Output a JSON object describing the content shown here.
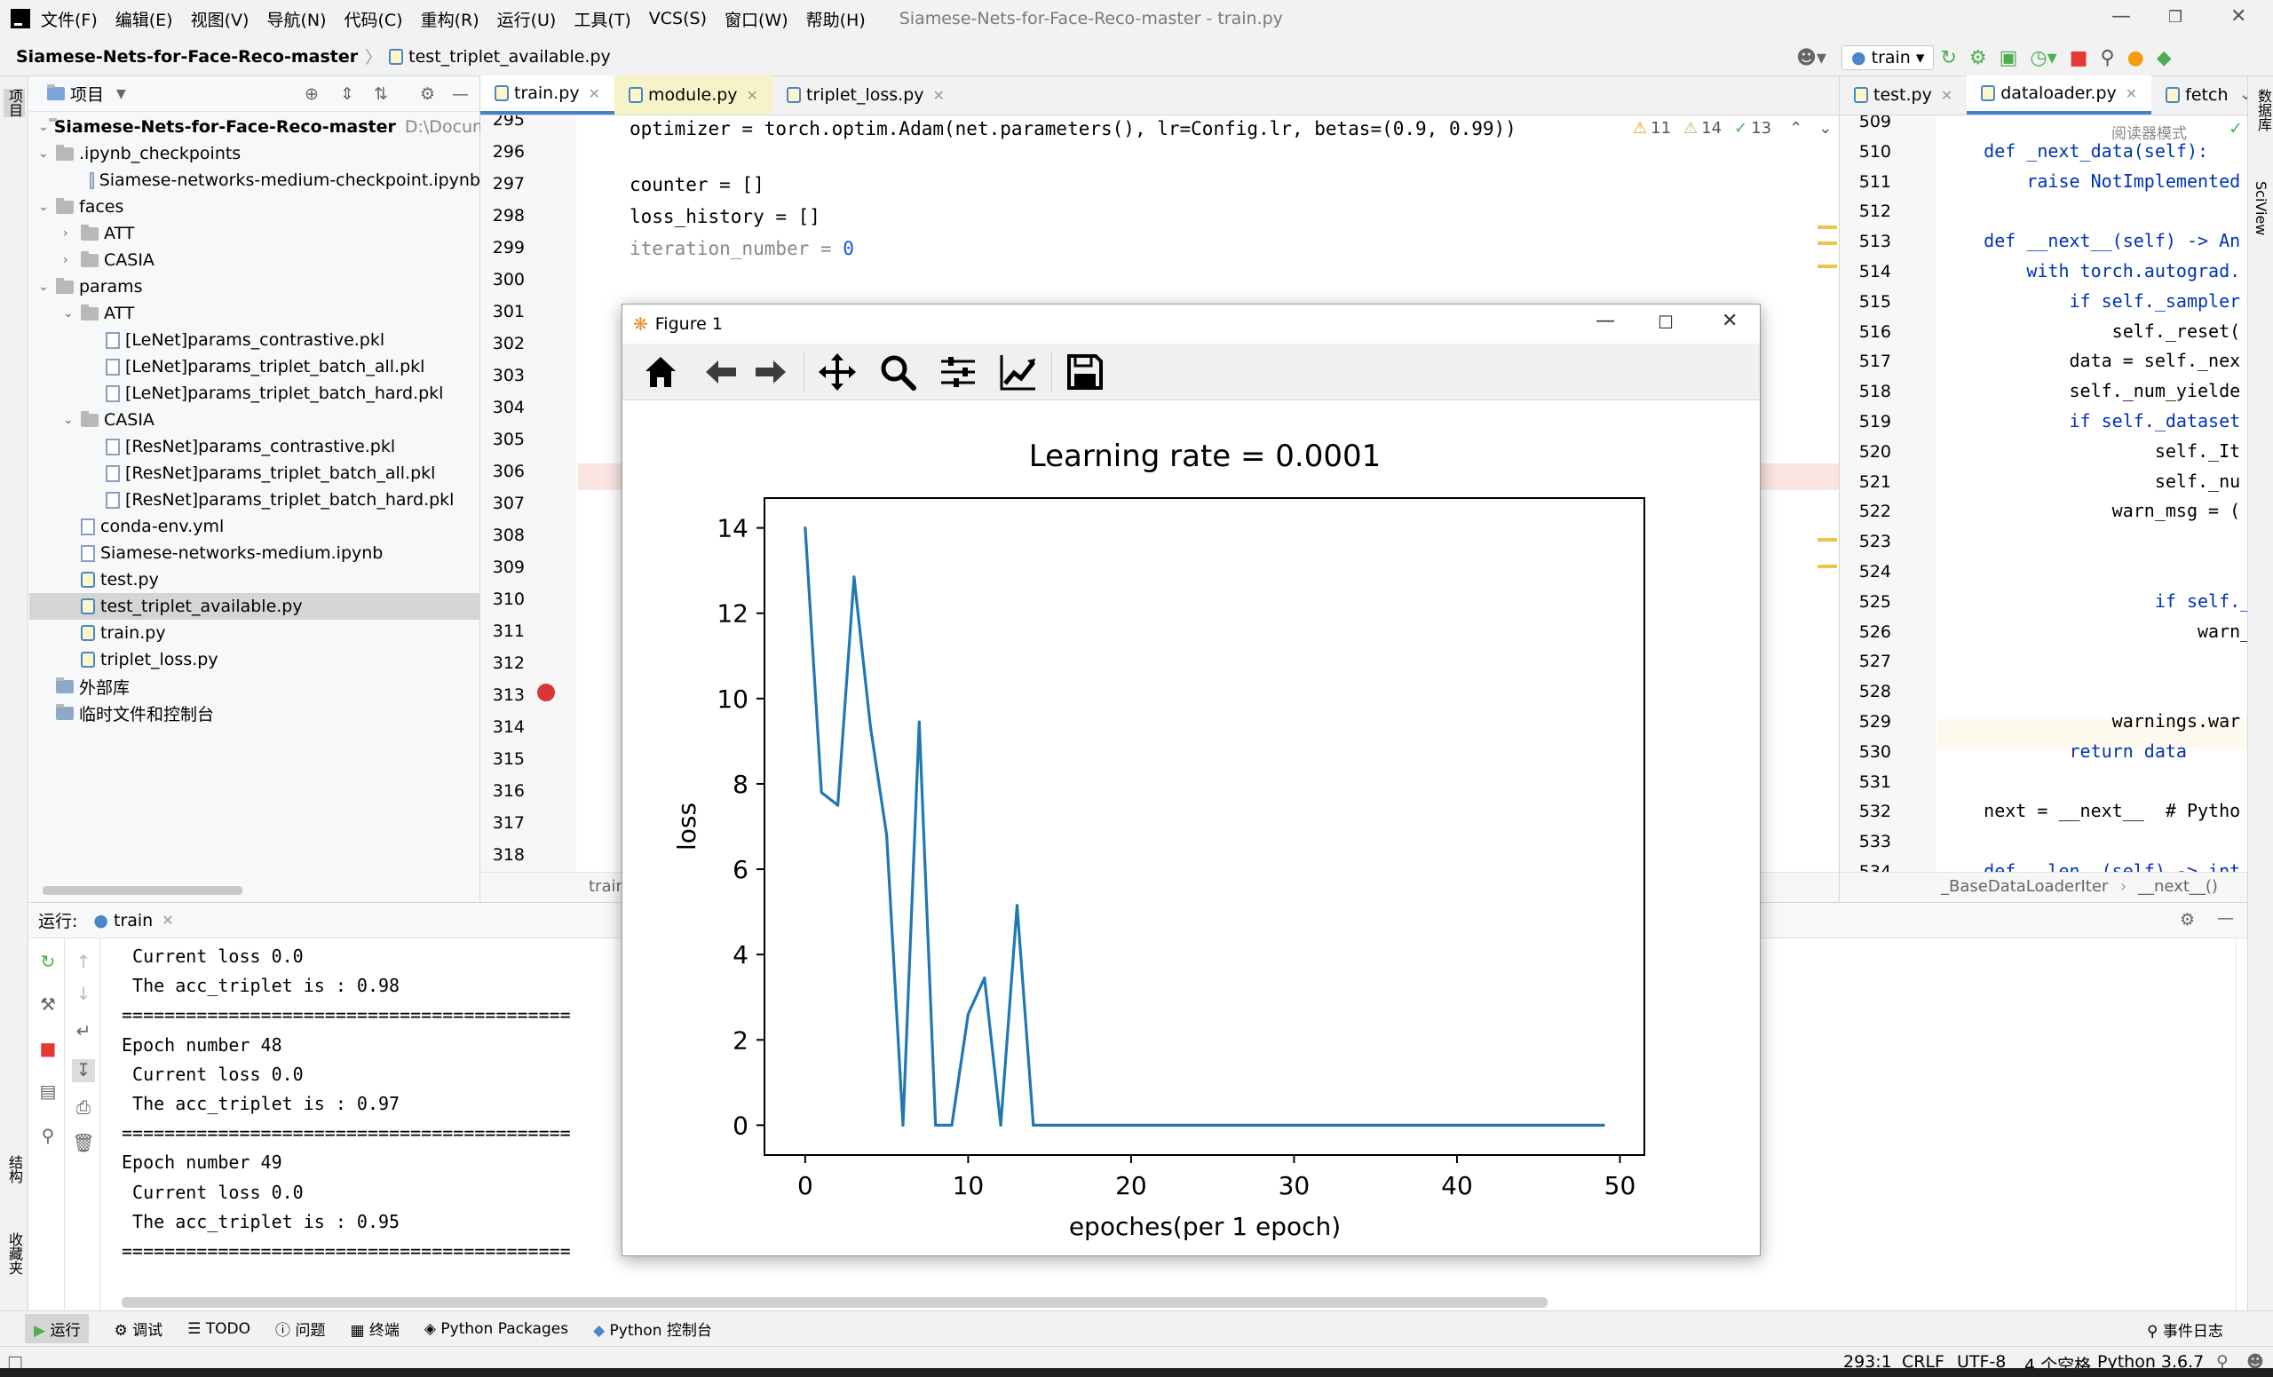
{
  "menubar": {
    "items": [
      "文件(F)",
      "编辑(E)",
      "视图(V)",
      "导航(N)",
      "代码(C)",
      "重构(R)",
      "运行(U)",
      "工具(T)",
      "VCS(S)",
      "窗口(W)",
      "帮助(H)"
    ],
    "window_title": "Siamese-Nets-for-Face-Reco-master - train.py"
  },
  "navbar": {
    "project": "Siamese-Nets-for-Face-Reco-master",
    "file": "test_triplet_available.py",
    "run_config": "train"
  },
  "project_panel": {
    "title": "项目",
    "rows": [
      {
        "label": "Siamese-Nets-for-Face-Reco-master",
        "suffix": "D:\\Documents\\[",
        "depth": 0,
        "kind": "root"
      },
      {
        "label": ".ipynb_checkpoints",
        "depth": 0,
        "kind": "folder",
        "open": true
      },
      {
        "label": "Siamese-networks-medium-checkpoint.ipynb",
        "depth": 2,
        "kind": "file"
      },
      {
        "label": "faces",
        "depth": 0,
        "kind": "folder",
        "open": true
      },
      {
        "label": "ATT",
        "depth": 1,
        "kind": "folder",
        "open": false
      },
      {
        "label": "CASIA",
        "depth": 1,
        "kind": "folder",
        "open": false
      },
      {
        "label": "params",
        "depth": 0,
        "kind": "folder",
        "open": true
      },
      {
        "label": "ATT",
        "depth": 1,
        "kind": "folder",
        "open": true
      },
      {
        "label": "[LeNet]params_contrastive.pkl",
        "depth": 2,
        "kind": "file"
      },
      {
        "label": "[LeNet]params_triplet_batch_all.pkl",
        "depth": 2,
        "kind": "file"
      },
      {
        "label": "[LeNet]params_triplet_batch_hard.pkl",
        "depth": 2,
        "kind": "file"
      },
      {
        "label": "CASIA",
        "depth": 1,
        "kind": "folder",
        "open": true
      },
      {
        "label": "[ResNet]params_contrastive.pkl",
        "depth": 2,
        "kind": "file"
      },
      {
        "label": "[ResNet]params_triplet_batch_all.pkl",
        "depth": 2,
        "kind": "file"
      },
      {
        "label": "[ResNet]params_triplet_batch_hard.pkl",
        "depth": 2,
        "kind": "file"
      },
      {
        "label": "conda-env.yml",
        "depth": 1,
        "kind": "file"
      },
      {
        "label": "Siamese-networks-medium.ipynb",
        "depth": 1,
        "kind": "file"
      },
      {
        "label": "test.py",
        "depth": 1,
        "kind": "py"
      },
      {
        "label": "test_triplet_available.py",
        "depth": 1,
        "kind": "py",
        "selected": true
      },
      {
        "label": "train.py",
        "depth": 1,
        "kind": "py"
      },
      {
        "label": "triplet_loss.py",
        "depth": 1,
        "kind": "py"
      },
      {
        "label": "外部库",
        "depth": 0,
        "kind": "lib"
      },
      {
        "label": "临时文件和控制台",
        "depth": 0,
        "kind": "lib"
      }
    ]
  },
  "editor": {
    "tabs": [
      "train.py",
      "module.py",
      "triplet_loss.py"
    ],
    "inspections": {
      "warnings": "11",
      "weak": "14",
      "ok": "13"
    },
    "line_numbers": [
      "295",
      "296",
      "297",
      "298",
      "299",
      "300",
      "301",
      "302",
      "303",
      "304",
      "305",
      "306",
      "307",
      "308",
      "309",
      "310",
      "311",
      "312",
      "313",
      "314",
      "315",
      "316",
      "317",
      "318"
    ],
    "code": {
      "l295": "optimizer = torch.optim.Adam(net.parameters(), lr=Config.lr, betas=(0.9, 0.99))",
      "l297": "counter = []",
      "l298": "loss_history = []",
      "l299a": "iteration_number = ",
      "l299b": "0"
    },
    "breadcrumb": "train"
  },
  "editor2": {
    "tabs": [
      "test.py",
      "dataloader.py",
      "fetch"
    ],
    "reader_mode": "阅读器模式",
    "line_numbers": [
      "509",
      "510",
      "511",
      "512",
      "513",
      "514",
      "515",
      "516",
      "517",
      "518",
      "519",
      "520",
      "521",
      "522",
      "523",
      "524",
      "525",
      "526",
      "527",
      "528",
      "529",
      "530",
      "531",
      "532",
      "533",
      "534"
    ],
    "code": [
      {
        "ln": "510",
        "t": "    def _next_data(self):"
      },
      {
        "ln": "511",
        "t": "        raise NotImplemented"
      },
      {
        "ln": "513",
        "t": "    def __next__(self) -> An"
      },
      {
        "ln": "514",
        "t": "        with torch.autograd."
      },
      {
        "ln": "515",
        "t": "            if self._sampler"
      },
      {
        "ln": "516",
        "t": "                self._reset("
      },
      {
        "ln": "517",
        "t": "            data = self._nex"
      },
      {
        "ln": "518",
        "t": "            self._num_yielde"
      },
      {
        "ln": "519",
        "t": "            if self._dataset"
      },
      {
        "ln": "520",
        "t": "                    self._It"
      },
      {
        "ln": "521",
        "t": "                    self._nu"
      },
      {
        "ln": "522",
        "t": "                warn_msg = ("
      },
      {
        "ln": "525",
        "t": "                    if self._num"
      },
      {
        "ln": "526",
        "t": "                        warn_msg"
      },
      {
        "ln": "529",
        "t": "                warnings.war"
      },
      {
        "ln": "530",
        "t": "            return data"
      },
      {
        "ln": "532",
        "t": "    next = __next__  # Pytho"
      },
      {
        "ln": "534",
        "t": "    def __len__(self) -> int"
      }
    ],
    "breadcrumb": [
      "_BaseDataLoaderIter",
      "__next__()"
    ]
  },
  "right_strip": [
    "数据库",
    "SciView"
  ],
  "left_strip": [
    "项目",
    "结构",
    "收藏夹"
  ],
  "run_panel": {
    "label": "运行:",
    "tab": "train",
    "lines": [
      " Current loss 0.0",
      " The acc_triplet is : 0.98",
      "==========================================",
      "Epoch number 48",
      " Current loss 0.0",
      " The acc_triplet is : 0.97",
      "==========================================",
      "Epoch number 49",
      " Current loss 0.0",
      " The acc_triplet is : 0.95",
      "=========================================="
    ]
  },
  "bottom_tools": [
    "运行",
    "调试",
    "TODO",
    "问题",
    "终端",
    "Python Packages",
    "Python 控制台"
  ],
  "event_log": "事件日志",
  "status": {
    "position": "293:1",
    "line_sep": "CRLF",
    "encoding": "UTF-8",
    "indent": "4 个空格",
    "interpreter": "Python 3.6.7"
  },
  "figure": {
    "window_title": "Figure 1",
    "toolbar": [
      "home-icon",
      "back-icon",
      "forward-icon",
      "pan-icon",
      "zoom-icon",
      "configure-icon",
      "edit-axes-icon",
      "save-icon"
    ]
  },
  "chart_data": {
    "type": "line",
    "title": "Learning rate = 0.0001",
    "xlabel": "epoches(per 1 epoch)",
    "ylabel": "loss",
    "xlim": [
      -2.5,
      51.5
    ],
    "ylim": [
      -0.7,
      14.7
    ],
    "xticks": [
      0,
      10,
      20,
      30,
      40,
      50
    ],
    "yticks": [
      0,
      2,
      4,
      6,
      8,
      10,
      12,
      14
    ],
    "color": "#1f77b4",
    "grid": false,
    "x": [
      0,
      1,
      2,
      3,
      4,
      5,
      6,
      7,
      8,
      9,
      10,
      11,
      12,
      13,
      14,
      15,
      16,
      17,
      18,
      19,
      20,
      21,
      22,
      23,
      24,
      25,
      26,
      27,
      28,
      29,
      30,
      31,
      32,
      33,
      34,
      35,
      36,
      37,
      38,
      39,
      40,
      41,
      42,
      43,
      44,
      45,
      46,
      47,
      48,
      49
    ],
    "y": [
      14.0,
      7.8,
      7.5,
      12.85,
      9.35,
      6.8,
      0.0,
      9.45,
      0.0,
      0.0,
      2.6,
      3.45,
      0.0,
      5.15,
      0.0,
      0,
      0,
      0,
      0,
      0,
      0,
      0,
      0,
      0,
      0,
      0,
      0,
      0,
      0,
      0,
      0,
      0,
      0,
      0,
      0,
      0,
      0,
      0,
      0,
      0,
      0,
      0,
      0,
      0,
      0,
      0,
      0,
      0,
      0,
      0
    ]
  }
}
